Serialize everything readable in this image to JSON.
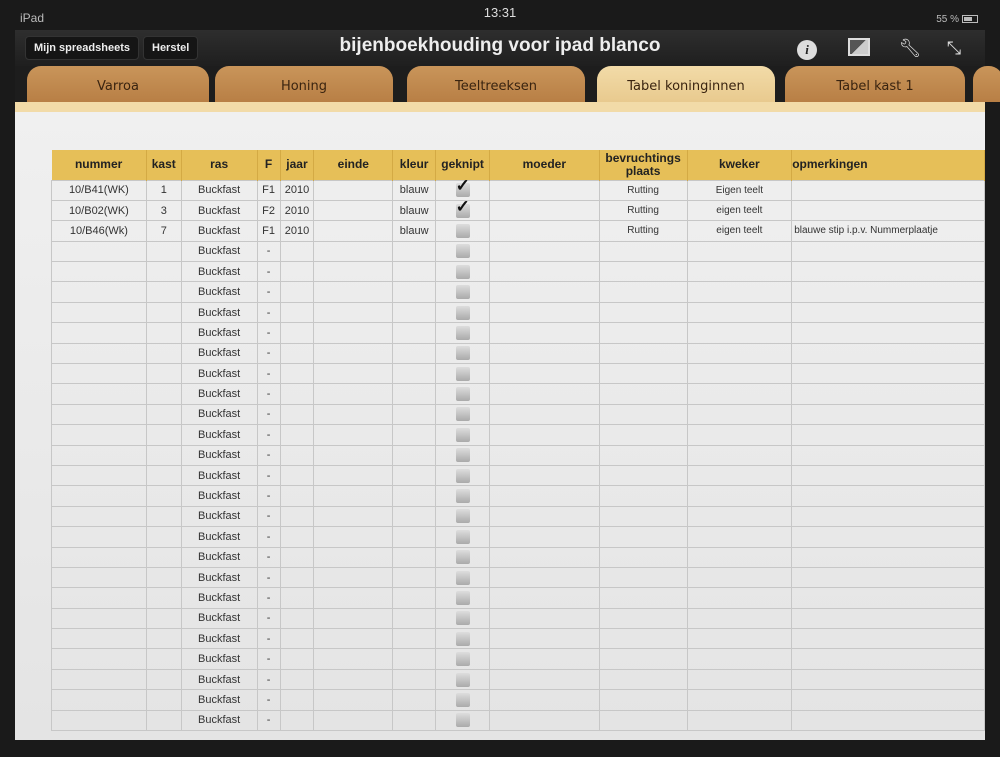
{
  "status": {
    "device": "iPad",
    "time": "13:31",
    "battery": "55 %"
  },
  "toolbar": {
    "my_spreadsheets": "Mijn spreadsheets",
    "undo": "Herstel",
    "title": "bijenboekhouding voor ipad blanco",
    "icons": [
      "info-icon",
      "image-icon",
      "wrench-icon",
      "fullscreen-icon"
    ]
  },
  "tabs": [
    {
      "label": "Varroa"
    },
    {
      "label": "Honing"
    },
    {
      "label": "Teeltreeksen"
    },
    {
      "label": "Tabel koninginnen",
      "active": true
    },
    {
      "label": "Tabel kast 1"
    }
  ],
  "colors": {
    "header": "#e6bf58",
    "active_tab": "#f2dba8",
    "tab": "#c08a50"
  },
  "table": {
    "headers": [
      "nummer",
      "kast",
      "ras",
      "F",
      "jaar",
      "einde",
      "kleur",
      "geknipt",
      "moeder",
      "bevruchtings plaats",
      "kweker",
      "opmerkingen"
    ],
    "rows": [
      {
        "nummer": "10/B41(WK)",
        "kast": "1",
        "ras": "Buckfast",
        "F": "F1",
        "jaar": "2010",
        "kleur": "blauw",
        "geknipt": true,
        "plaats": "Rutting",
        "kweker": "Eigen teelt",
        "opm": ""
      },
      {
        "nummer": "10/B02(WK)",
        "kast": "3",
        "ras": "Buckfast",
        "F": "F2",
        "jaar": "2010",
        "kleur": "blauw",
        "geknipt": true,
        "plaats": "Rutting",
        "kweker": "eigen teelt",
        "opm": ""
      },
      {
        "nummer": "10/B46(Wk)",
        "kast": "7",
        "ras": "Buckfast",
        "F": "F1",
        "jaar": "2010",
        "kleur": "blauw",
        "geknipt": false,
        "plaats": "Rutting",
        "kweker": "eigen teelt",
        "opm": "blauwe stip i.p.v. Nummerplaatje"
      },
      {
        "ras": "Buckfast",
        "F": "-"
      },
      {
        "ras": "Buckfast",
        "F": "-"
      },
      {
        "ras": "Buckfast",
        "F": "-"
      },
      {
        "ras": "Buckfast",
        "F": "-"
      },
      {
        "ras": "Buckfast",
        "F": "-"
      },
      {
        "ras": "Buckfast",
        "F": "-"
      },
      {
        "ras": "Buckfast",
        "F": "-"
      },
      {
        "ras": "Buckfast",
        "F": "-"
      },
      {
        "ras": "Buckfast",
        "F": "-"
      },
      {
        "ras": "Buckfast",
        "F": "-"
      },
      {
        "ras": "Buckfast",
        "F": "-"
      },
      {
        "ras": "Buckfast",
        "F": "-"
      },
      {
        "ras": "Buckfast",
        "F": "-"
      },
      {
        "ras": "Buckfast",
        "F": "-"
      },
      {
        "ras": "Buckfast",
        "F": "-"
      },
      {
        "ras": "Buckfast",
        "F": "-"
      },
      {
        "ras": "Buckfast",
        "F": "-"
      },
      {
        "ras": "Buckfast",
        "F": "-"
      },
      {
        "ras": "Buckfast",
        "F": "-"
      },
      {
        "ras": "Buckfast",
        "F": "-"
      },
      {
        "ras": "Buckfast",
        "F": "-"
      },
      {
        "ras": "Buckfast",
        "F": "-"
      },
      {
        "ras": "Buckfast",
        "F": "-"
      },
      {
        "ras": "Buckfast",
        "F": "-"
      }
    ]
  }
}
